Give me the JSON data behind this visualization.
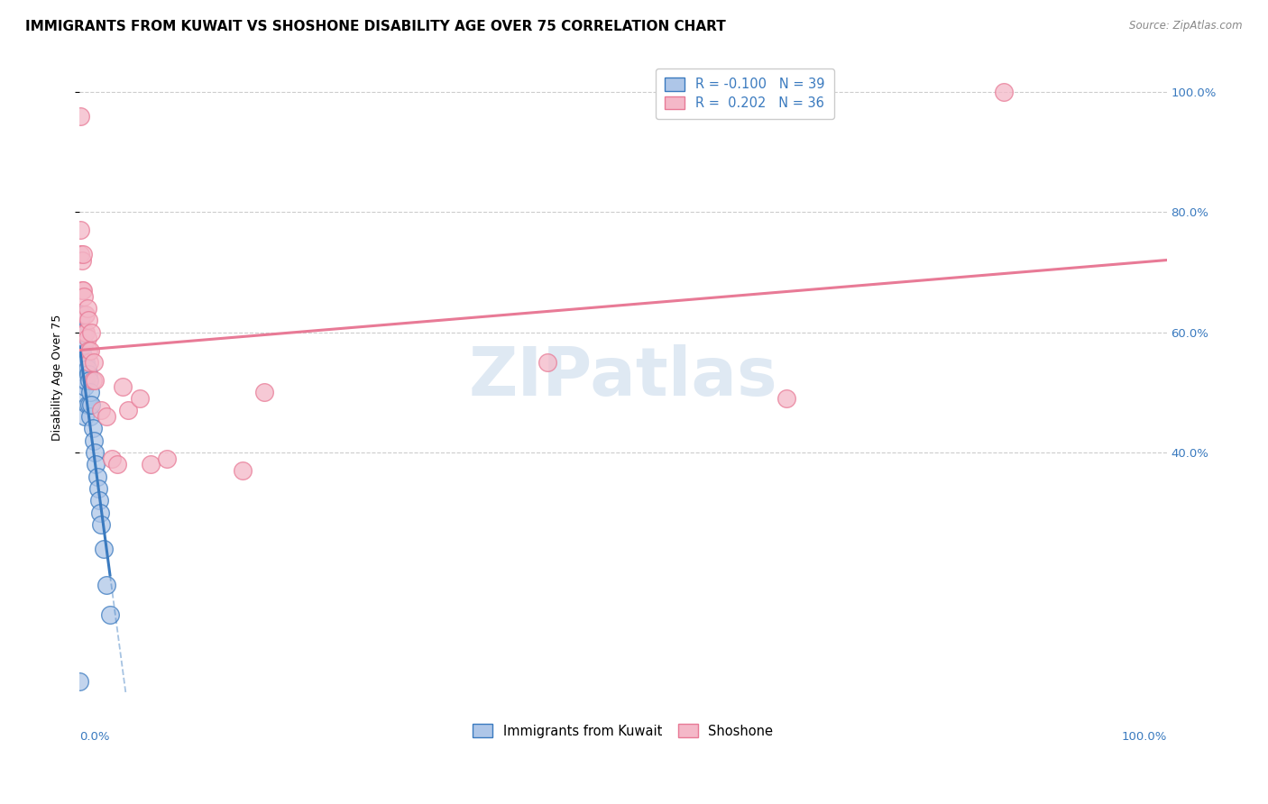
{
  "title": "IMMIGRANTS FROM KUWAIT VS SHOSHONE DISABILITY AGE OVER 75 CORRELATION CHART",
  "source": "Source: ZipAtlas.com",
  "ylabel": "Disability Age Over 75",
  "watermark": "ZIPatlas",
  "legend_r_kuwait": "-0.100",
  "legend_n_kuwait": "39",
  "legend_r_shoshone": "0.202",
  "legend_n_shoshone": "36",
  "kuwait_color": "#aec6e8",
  "shoshone_color": "#f4b8c8",
  "kuwait_line_color": "#3a7abf",
  "shoshone_line_color": "#e87a96",
  "kuwait_points_x": [
    0.0,
    0.001,
    0.001,
    0.001,
    0.001,
    0.001,
    0.002,
    0.002,
    0.002,
    0.003,
    0.003,
    0.004,
    0.004,
    0.004,
    0.005,
    0.005,
    0.005,
    0.006,
    0.006,
    0.007,
    0.007,
    0.008,
    0.009,
    0.009,
    0.01,
    0.01,
    0.011,
    0.012,
    0.013,
    0.014,
    0.015,
    0.016,
    0.017,
    0.018,
    0.019,
    0.02,
    0.022,
    0.025,
    0.028
  ],
  "kuwait_points_y": [
    0.02,
    0.58,
    0.6,
    0.62,
    0.55,
    0.5,
    0.63,
    0.57,
    0.53,
    0.6,
    0.56,
    0.54,
    0.58,
    0.52,
    0.55,
    0.51,
    0.46,
    0.55,
    0.52,
    0.54,
    0.48,
    0.53,
    0.52,
    0.48,
    0.5,
    0.46,
    0.48,
    0.44,
    0.42,
    0.4,
    0.38,
    0.36,
    0.34,
    0.32,
    0.3,
    0.28,
    0.24,
    0.18,
    0.13
  ],
  "shoshone_points_x": [
    0.001,
    0.001,
    0.002,
    0.002,
    0.003,
    0.003,
    0.004,
    0.005,
    0.005,
    0.006,
    0.006,
    0.007,
    0.007,
    0.008,
    0.008,
    0.009,
    0.01,
    0.011,
    0.012,
    0.013,
    0.014,
    0.02,
    0.025,
    0.03,
    0.035,
    0.04,
    0.045,
    0.055,
    0.065,
    0.08,
    0.15,
    0.17,
    0.43,
    0.65,
    0.85,
    0.001
  ],
  "shoshone_points_y": [
    0.77,
    0.73,
    0.72,
    0.67,
    0.73,
    0.67,
    0.66,
    0.63,
    0.6,
    0.63,
    0.6,
    0.64,
    0.59,
    0.62,
    0.57,
    0.55,
    0.57,
    0.6,
    0.52,
    0.55,
    0.52,
    0.47,
    0.46,
    0.39,
    0.38,
    0.51,
    0.47,
    0.49,
    0.38,
    0.39,
    0.37,
    0.5,
    0.55,
    0.49,
    1.0,
    0.96
  ],
  "xlim": [
    0,
    1.0
  ],
  "ylim": [
    0,
    1.05
  ],
  "ytick_positions": [
    0.4,
    0.6,
    0.8,
    1.0
  ],
  "ytick_labels": [
    "40.0%",
    "60.0%",
    "80.0%",
    "100.0%"
  ],
  "grid_color": "#cccccc",
  "background_color": "#ffffff",
  "title_fontsize": 11,
  "axis_label_fontsize": 9,
  "tick_fontsize": 9.5
}
